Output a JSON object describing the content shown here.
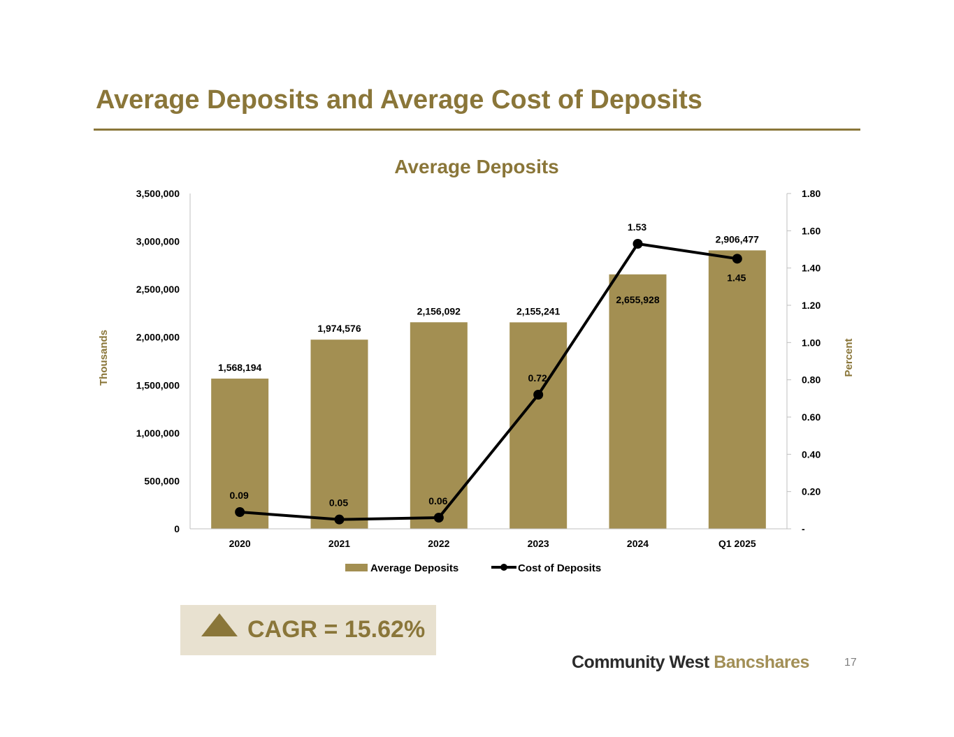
{
  "slide": {
    "title": "Average Deposits and Average Cost of Deposits",
    "page_number": "17"
  },
  "cagr": {
    "text": "CAGR = 15.62%",
    "icon": "triangle-up-icon"
  },
  "brand": {
    "part1": "Community West",
    "part2": "Bancshares"
  },
  "colors": {
    "accent": "#8a7639",
    "bar": "#a38f52",
    "line": "#000000",
    "cagr_box": "#e8e1d0"
  },
  "chart_data": {
    "type": "bar",
    "title": "Average Deposits",
    "categories": [
      "2020",
      "2021",
      "2022",
      "2023",
      "2024",
      "Q1 2025"
    ],
    "series": [
      {
        "name": "Average Deposits",
        "type": "bar",
        "axis": "left",
        "values": [
          1568194,
          1974576,
          2156092,
          2155241,
          2655928,
          2906477
        ],
        "labels": [
          "1,568,194",
          "1,974,576",
          "2,156,092",
          "2,155,241",
          "2,655,928",
          "2,906,477"
        ]
      },
      {
        "name": "Cost of Deposits",
        "type": "line",
        "axis": "right",
        "values": [
          0.09,
          0.05,
          0.06,
          0.72,
          1.53,
          1.45
        ],
        "labels": [
          "0.09",
          "0.05",
          "0.06",
          "0.72",
          "1.53",
          "1.45"
        ]
      }
    ],
    "ylabel": "Thousands",
    "y2label": "Percent",
    "ylim": [
      0,
      3500000
    ],
    "y2lim": [
      0,
      1.8
    ],
    "yticks": [
      "0",
      "500,000",
      "1,000,000",
      "1,500,000",
      "2,000,000",
      "2,500,000",
      "3,000,000",
      "3,500,000"
    ],
    "y2ticks": [
      "-",
      "0.20",
      "0.40",
      "0.60",
      "0.80",
      "1.00",
      "1.20",
      "1.40",
      "1.60",
      "1.80"
    ],
    "grid": false,
    "legend_position": "bottom"
  }
}
